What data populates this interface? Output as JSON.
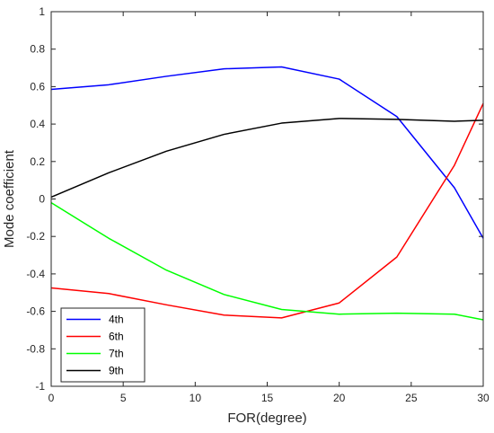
{
  "chart_data": {
    "type": "line",
    "title": "",
    "xlabel": "FOR(degree)",
    "ylabel": "Mode coefficient",
    "xlim": [
      0,
      30
    ],
    "ylim": [
      -1,
      1
    ],
    "xticks": [
      0,
      5,
      10,
      15,
      20,
      25,
      30
    ],
    "yticks": [
      -1,
      -0.8,
      -0.6,
      -0.4,
      -0.2,
      0,
      0.2,
      0.4,
      0.6,
      0.8,
      1
    ],
    "xtick_labels": [
      "0",
      "5",
      "10",
      "15",
      "20",
      "25",
      "30"
    ],
    "ytick_labels": [
      "-1",
      "-0.8",
      "-0.6",
      "-0.4",
      "-0.2",
      "0",
      "0.2",
      "0.4",
      "0.6",
      "0.8",
      "1"
    ],
    "grid": false,
    "legend_position": "bottom-left",
    "x": [
      0,
      4,
      8,
      12,
      16,
      20,
      24,
      28,
      30
    ],
    "series": [
      {
        "name": "4th",
        "color": "#0000ff",
        "values": [
          0.585,
          0.61,
          0.655,
          0.695,
          0.705,
          0.64,
          0.44,
          0.06,
          -0.21
        ]
      },
      {
        "name": "6th",
        "color": "#ff0000",
        "values": [
          -0.475,
          -0.505,
          -0.565,
          -0.62,
          -0.635,
          -0.555,
          -0.31,
          0.18,
          0.51
        ]
      },
      {
        "name": "7th",
        "color": "#00ff00",
        "values": [
          -0.02,
          -0.21,
          -0.38,
          -0.51,
          -0.59,
          -0.615,
          -0.61,
          -0.615,
          -0.645
        ]
      },
      {
        "name": "9th",
        "color": "#000000",
        "values": [
          0.01,
          0.14,
          0.255,
          0.345,
          0.405,
          0.43,
          0.425,
          0.415,
          0.42
        ]
      }
    ]
  }
}
